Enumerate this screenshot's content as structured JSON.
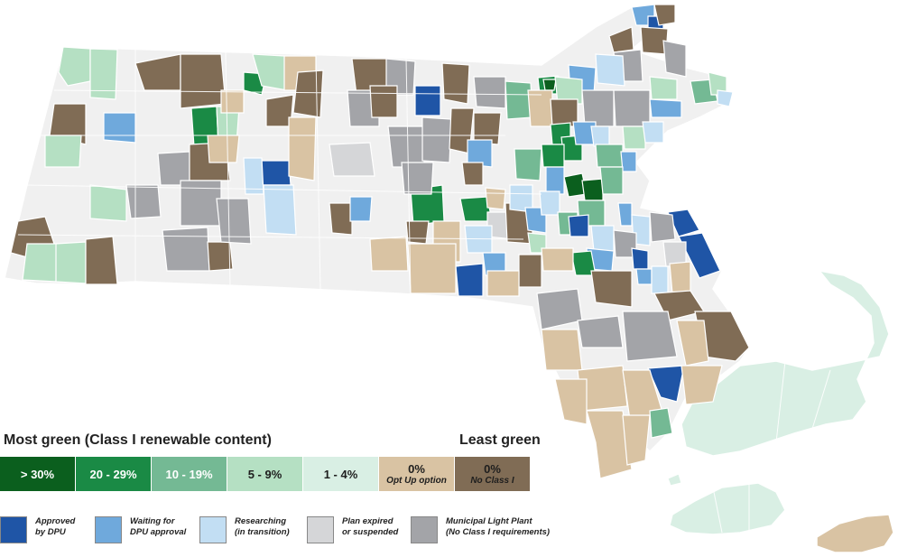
{
  "legend": {
    "most_label": "Most green (Class I renewable content)",
    "least_label": "Least green",
    "scale": [
      {
        "label": "> 30%",
        "sub": "",
        "color": "#0b5f1e",
        "text_color": "#ffffff"
      },
      {
        "label": "20 - 29%",
        "sub": "",
        "color": "#1a8a45",
        "text_color": "#ffffff"
      },
      {
        "label": "10 - 19%",
        "sub": "",
        "color": "#74b994",
        "text_color": "#ffffff"
      },
      {
        "label": "5 - 9%",
        "sub": "",
        "color": "#b5e0c3",
        "text_color": "#1e1e1e"
      },
      {
        "label": "1 - 4%",
        "sub": "",
        "color": "#d9efe4",
        "text_color": "#1e1e1e"
      },
      {
        "label": "0%",
        "sub": "Opt Up option",
        "color": "#d9c3a3",
        "text_color": "#1e1e1e"
      },
      {
        "label": "0%",
        "sub": "No Class I",
        "color": "#806c55",
        "text_color": "#1e1e1e"
      }
    ],
    "status": [
      {
        "line1": "Approved",
        "line2": "by DPU",
        "color": "#1f55a6"
      },
      {
        "line1": "Waiting for",
        "line2": "DPU approval",
        "color": "#6fa9dc"
      },
      {
        "line1": "Researching",
        "line2": "(in transition)",
        "color": "#c2def3"
      },
      {
        "line1": "Plan expired",
        "line2": "or suspended",
        "color": "#d5d6d8"
      },
      {
        "line1": "Municipal Light Plant",
        "line2": "(No Class I requirements)",
        "color": "#a3a4a8"
      }
    ]
  },
  "map": {
    "base_color": "#f0f0f0",
    "border_color": "#ffffff"
  }
}
